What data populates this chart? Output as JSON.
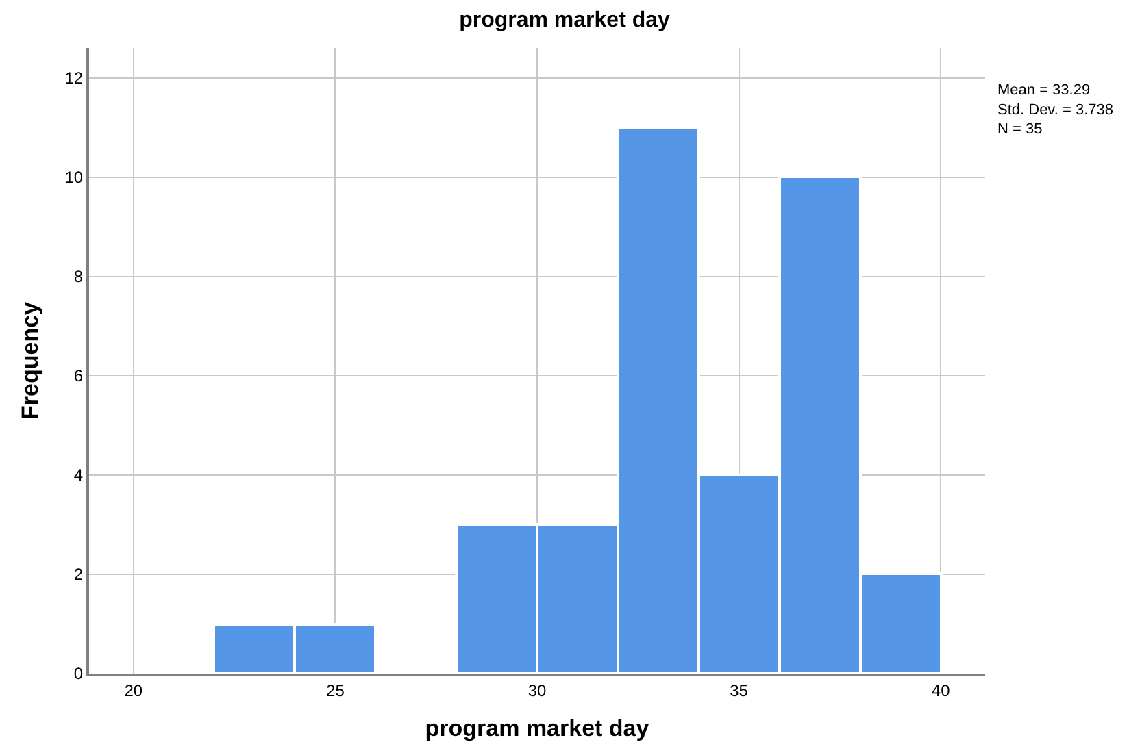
{
  "chart_data": {
    "type": "histogram",
    "title": "program market day",
    "xlabel": "program market day",
    "ylabel": "Frequency",
    "bins": [
      22,
      24,
      26,
      28,
      30,
      32,
      34,
      36,
      38,
      40
    ],
    "values": [
      1,
      1,
      0,
      3,
      3,
      11,
      4,
      10,
      2
    ],
    "color": "#5596e6",
    "xlim": [
      18.9,
      41.1
    ],
    "xticks": [
      20,
      25,
      30,
      35,
      40
    ],
    "ylim": [
      0,
      12.6
    ],
    "yticks": [
      0,
      2,
      4,
      6,
      8,
      10,
      12
    ],
    "grid": true,
    "annotations": [
      "Mean = 33.29",
      "Std. Dev. = 3.738",
      "N = 35"
    ]
  }
}
